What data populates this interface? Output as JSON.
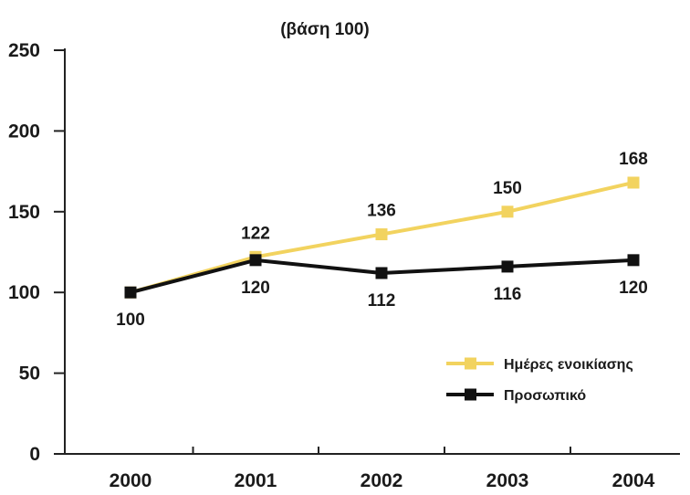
{
  "chart_data": {
    "type": "line",
    "subtitle": "(βάση 100)",
    "categories": [
      "2000",
      "2001",
      "2002",
      "2003",
      "2004"
    ],
    "ylim": [
      0,
      250
    ],
    "yticks": [
      "0",
      "50",
      "100",
      "150",
      "200",
      "250"
    ],
    "grid": false,
    "legend_position": "lower-right",
    "series": [
      {
        "name": "Ημέρες ενοικίασης",
        "color": "#f2d35f",
        "values": [
          100,
          122,
          136,
          150,
          168
        ],
        "labels": [
          "",
          "122",
          "136",
          "150",
          "168"
        ],
        "label_position": "above"
      },
      {
        "name": "Προσωπικό",
        "color": "#111111",
        "values": [
          100,
          120,
          112,
          116,
          120
        ],
        "labels": [
          "100",
          "120",
          "112",
          "116",
          "120"
        ],
        "label_position": "below"
      }
    ]
  }
}
